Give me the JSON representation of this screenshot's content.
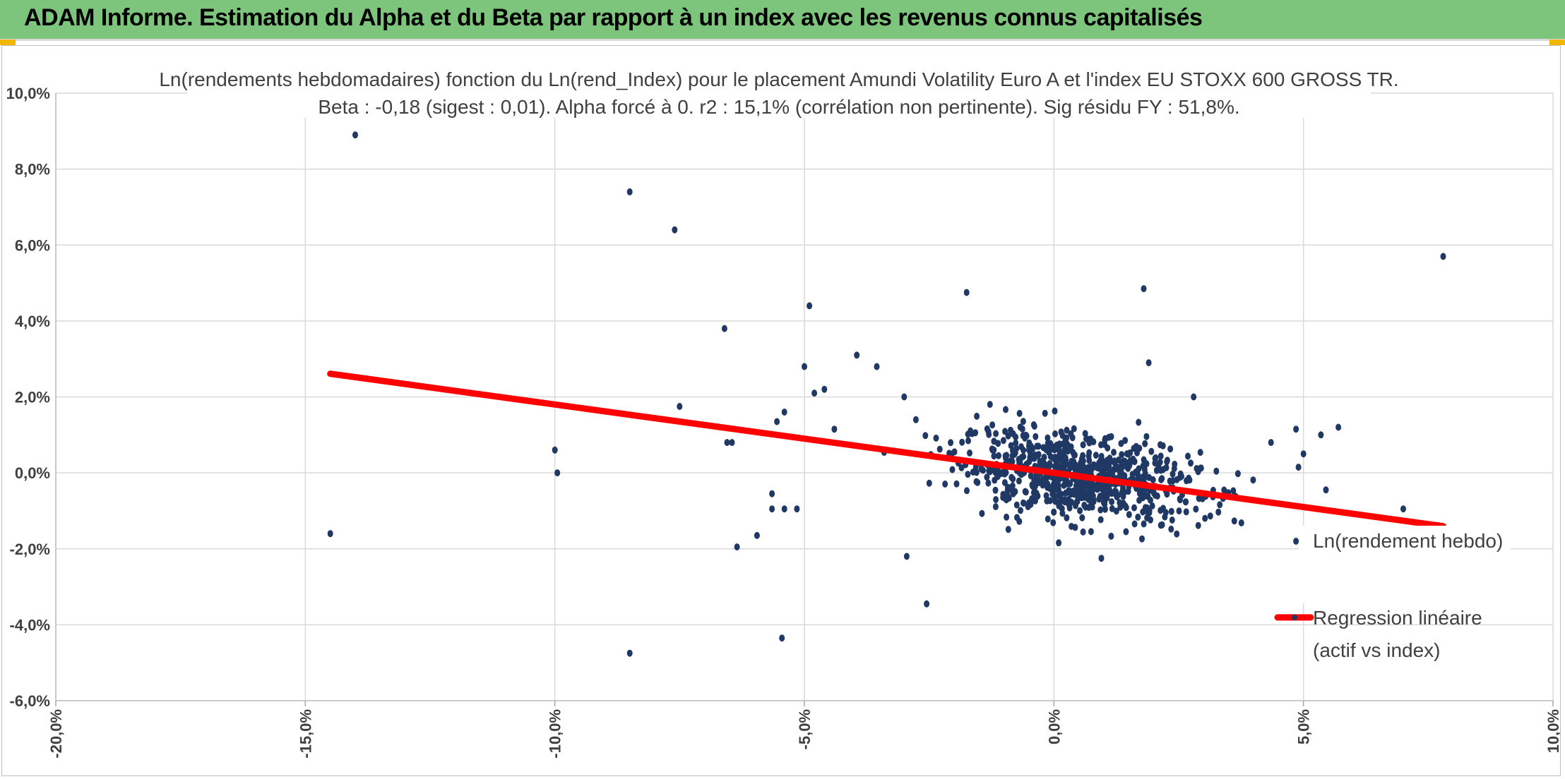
{
  "header": {
    "title": "ADAM Informe. Estimation du Alpha et du Beta par rapport à un index avec les revenus connus capitalisés"
  },
  "colors": {
    "header_bg": "#7dc57c",
    "points": "#203864",
    "regression": "#ff0000",
    "grid": "#d9d9d9",
    "text": "#404040"
  },
  "chart_data": {
    "type": "scatter",
    "title_line1": "Ln(rendements hebdomadaires) fonction du Ln(rend_Index) pour le placement Amundi Volatility Euro A  et l'index EU STOXX 600 GROSS TR.",
    "title_line2": "Beta : -0,18 (sigest : 0,01). Alpha forcé à 0. r2 : 15,1% (corrélation non pertinente). Sig résidu FY : 51,8%.",
    "xlim": [
      -0.2,
      0.1
    ],
    "ylim": [
      -0.06,
      0.1
    ],
    "x_ticks": [
      "-20,0%",
      "-15,0%",
      "-10,0%",
      "-5,0%",
      "0,0%",
      "5,0%",
      "10,0%"
    ],
    "x_tick_values": [
      -0.2,
      -0.15,
      -0.1,
      -0.05,
      0.0,
      0.05,
      0.1
    ],
    "y_ticks": [
      "-6,0%",
      "-4,0%",
      "-2,0%",
      "0,0%",
      "2,0%",
      "4,0%",
      "6,0%",
      "8,0%",
      "10,0%"
    ],
    "y_tick_values": [
      -0.06,
      -0.04,
      -0.02,
      0.0,
      0.02,
      0.04,
      0.06,
      0.08,
      0.1
    ],
    "grid": true,
    "legend_position": "right",
    "series": [
      {
        "name": "Ln(rendement hebdo)",
        "kind": "points",
        "outliers": [
          [
            -0.14,
            0.089
          ],
          [
            -0.145,
            -0.016
          ],
          [
            -0.085,
            0.074
          ],
          [
            -0.076,
            0.064
          ],
          [
            -0.085,
            -0.0475
          ],
          [
            -0.066,
            0.038
          ],
          [
            -0.1,
            0.006
          ],
          [
            -0.0995,
            0.0
          ],
          [
            -0.075,
            0.0175
          ],
          [
            -0.0655,
            0.008
          ],
          [
            -0.0645,
            0.008
          ],
          [
            -0.0635,
            -0.0195
          ],
          [
            -0.0595,
            -0.0165
          ],
          [
            -0.0565,
            -0.0055
          ],
          [
            -0.0565,
            -0.0095
          ],
          [
            -0.0545,
            -0.0435
          ],
          [
            -0.054,
            -0.0095
          ],
          [
            -0.0515,
            -0.0095
          ],
          [
            -0.049,
            0.044
          ],
          [
            -0.05,
            0.028
          ],
          [
            -0.0175,
            0.0475
          ],
          [
            0.018,
            0.0485
          ],
          [
            0.019,
            0.029
          ],
          [
            0.078,
            0.057
          ],
          [
            -0.0295,
            -0.022
          ],
          [
            -0.0255,
            -0.0345
          ],
          [
            0.0095,
            -0.0225
          ],
          [
            0.0485,
            -0.018
          ],
          [
            0.07,
            -0.0095
          ],
          [
            0.057,
            0.012
          ],
          [
            0.0535,
            0.01
          ],
          [
            0.0545,
            -0.0045
          ],
          [
            0.0485,
            0.0115
          ],
          [
            0.05,
            0.005
          ],
          [
            0.049,
            0.0015
          ],
          [
            0.0435,
            0.008
          ],
          [
            0.028,
            0.02
          ],
          [
            -0.0395,
            0.031
          ],
          [
            -0.0355,
            0.028
          ],
          [
            -0.046,
            0.022
          ],
          [
            -0.048,
            0.021
          ],
          [
            -0.044,
            0.0115
          ],
          [
            -0.03,
            0.02
          ],
          [
            -0.054,
            0.016
          ],
          [
            -0.0555,
            0.0135
          ]
        ],
        "cluster": {
          "count": 760,
          "x_center": 0.005,
          "x_sd": 0.012,
          "beta": -0.18,
          "y_sd": 0.0055
        }
      },
      {
        "name": "Regression linéaire (actif vs index)",
        "kind": "line",
        "beta": -0.18,
        "alpha": 0.0,
        "x_range": [
          -0.145,
          0.078
        ]
      }
    ],
    "legend": {
      "entry1": "Ln(rendement hebdo)",
      "entry2_line1": "Regression linéaire",
      "entry2_line2": "(actif vs index)"
    }
  }
}
